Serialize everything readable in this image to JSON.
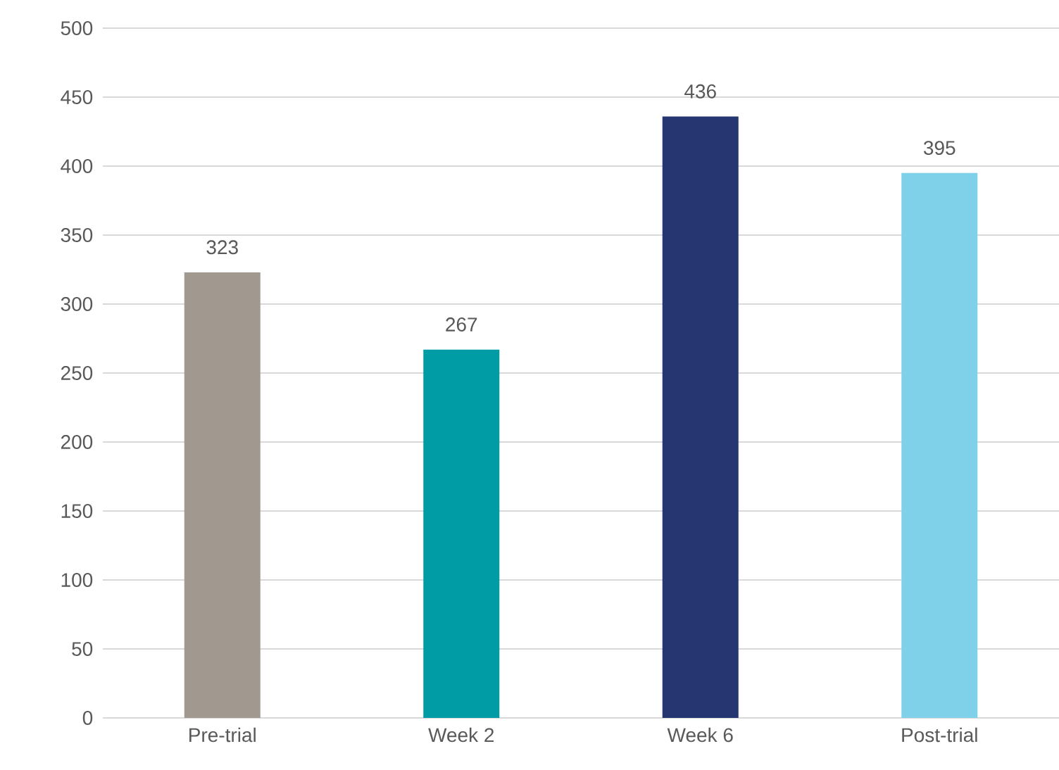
{
  "chart_data": {
    "type": "bar",
    "categories": [
      "Pre-trial",
      "Week 2",
      "Week 6",
      "Post-trial"
    ],
    "values": [
      323,
      267,
      436,
      395
    ],
    "colors": [
      "#a19990",
      "#009ca6",
      "#253670",
      "#7fd1ea"
    ],
    "ylim": [
      0,
      500
    ],
    "yticks": [
      0,
      50,
      100,
      150,
      200,
      250,
      300,
      350,
      400,
      450,
      500
    ],
    "grid": "y",
    "data_labels": true
  }
}
